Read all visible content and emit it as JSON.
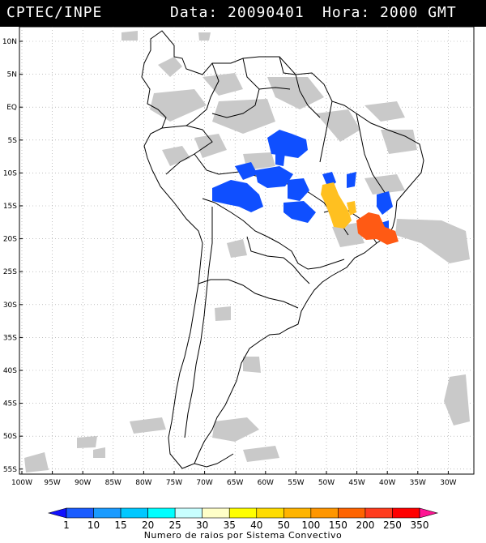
{
  "header": {
    "org": "CPTEC/INPE",
    "data_label": "Data: 20090401",
    "hora_label": "Hora: 2000 GMT"
  },
  "axes": {
    "lat_labels": [
      "10N",
      "5N",
      "EQ",
      "5S",
      "10S",
      "15S",
      "20S",
      "25S",
      "30S",
      "35S",
      "40S",
      "45S",
      "50S",
      "55S"
    ],
    "lon_labels": [
      "100W",
      "95W",
      "90W",
      "85W",
      "80W",
      "75W",
      "70W",
      "65W",
      "60W",
      "55W",
      "50W",
      "45W",
      "40W",
      "35W",
      "30W"
    ]
  },
  "legend": {
    "labels": [
      "1",
      "10",
      "15",
      "20",
      "25",
      "30",
      "35",
      "40",
      "50",
      "100",
      "150",
      "200",
      "250",
      "350"
    ],
    "colors": [
      "#1010ff",
      "#1a5cff",
      "#1a9bff",
      "#00c8ff",
      "#00ffff",
      "#c8ffff",
      "#ffffc8",
      "#ffff00",
      "#ffdc00",
      "#ffb400",
      "#ff9600",
      "#ff6400",
      "#ff3c1e",
      "#ff0000",
      "#ff1493"
    ],
    "title": "Numero de raios por Sistema Convectivo"
  },
  "colors": {
    "cloud": "#c9c9c9",
    "blue_cells": "#0f4fff",
    "yellow_cells": "#ffc020",
    "orange_cells": "#ff5a14",
    "coast": "#000000"
  }
}
